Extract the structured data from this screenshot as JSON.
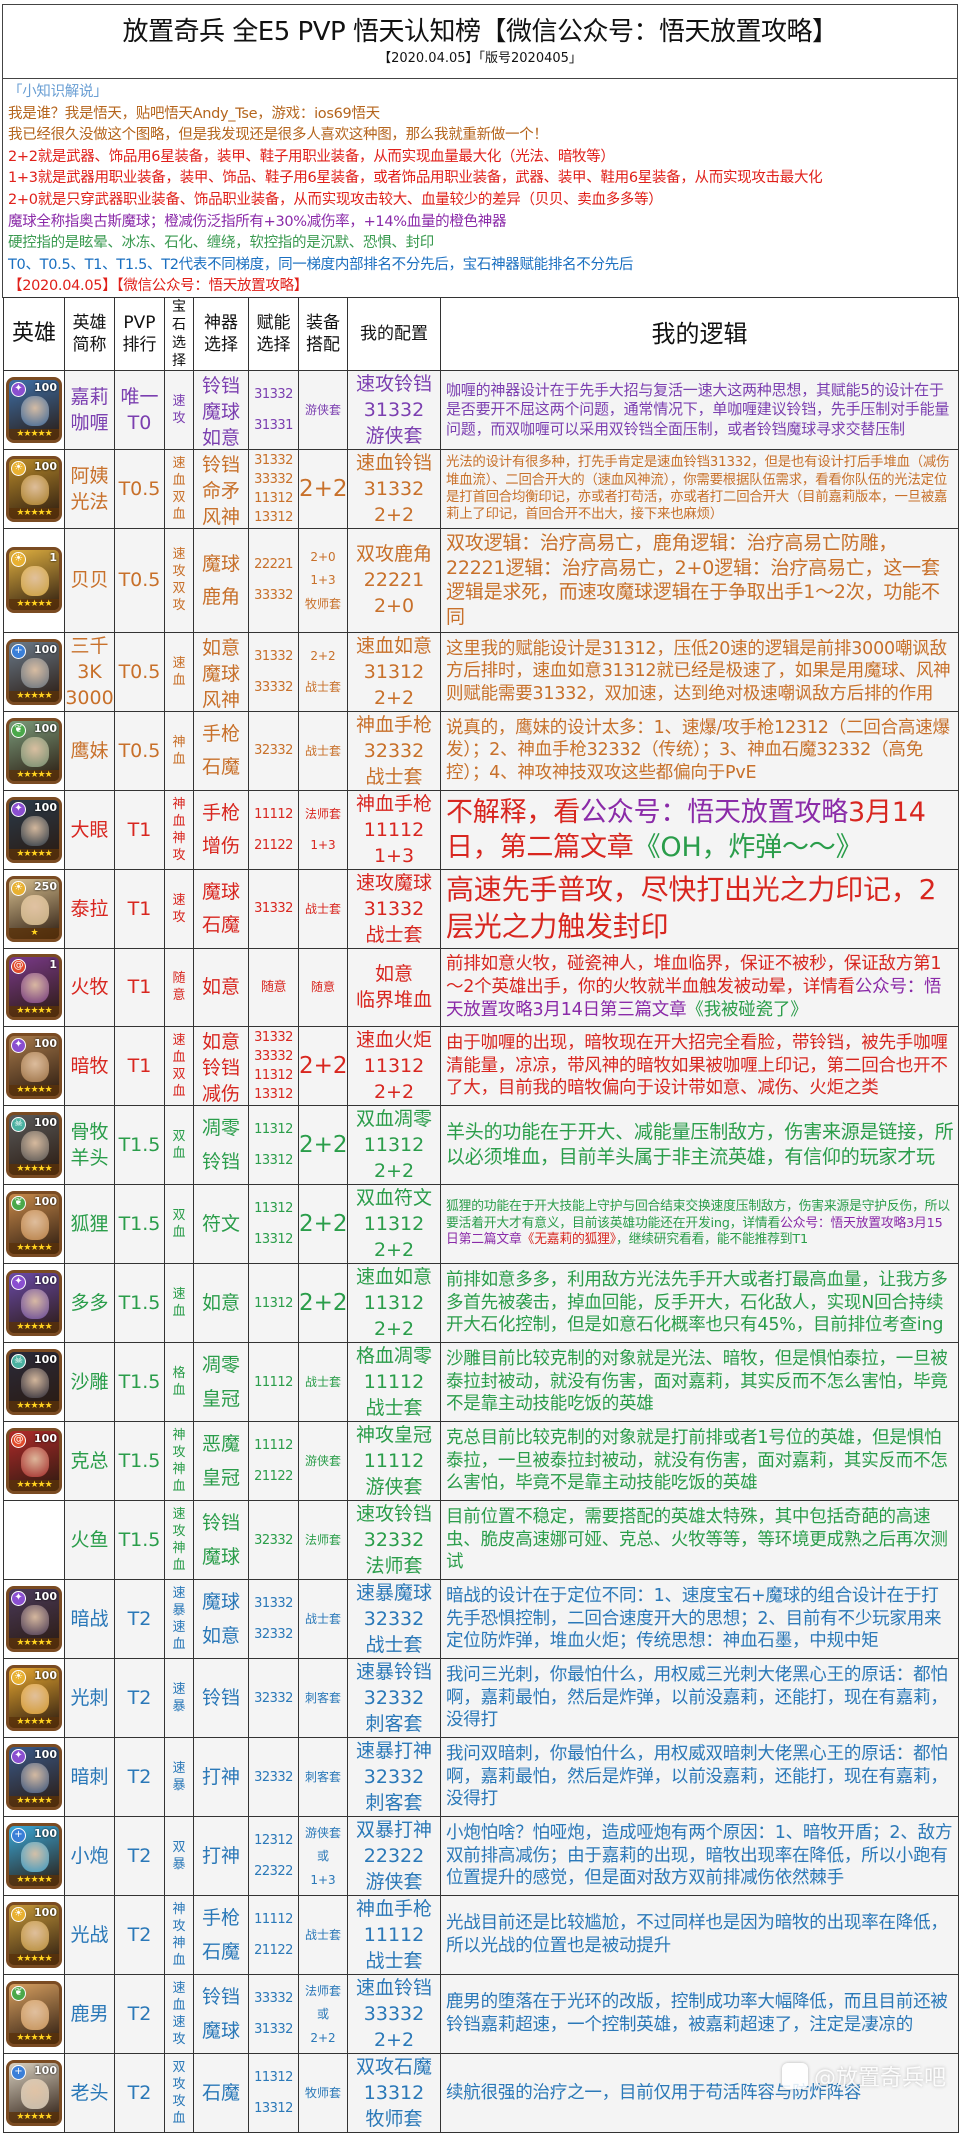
{
  "header": {
    "title": "放置奇兵 全E5 PVP 悟天认知榜【微信公众号：悟天放置攻略】",
    "subtitle": "【2020.04.05】「版号2020405」"
  },
  "notes": [
    {
      "text": "「小知识解说」",
      "color": "#6a9fd4"
    },
    {
      "text": "我是谁？我是悟天，贴吧悟天Andy_Tse，游戏：ios69悟天",
      "color": "#b5651d"
    },
    {
      "text": "我已经很久没做这个图略，但是我发现还是很多人喜欢这种图，那么我就重新做一个！",
      "color": "#b5651d"
    },
    {
      "text": "2+2就是武器、饰品用6星装备，装甲、鞋子用职业装备，从而实现血量最大化（光法、暗牧等）",
      "color": "#e0201a"
    },
    {
      "text": "1+3就是武器用职业装备，装甲、饰品、鞋子用6星装备，或者饰品用职业装备，武器、装甲、鞋用6星装备，从而实现攻击最大化",
      "color": "#e0201a"
    },
    {
      "text": "2+0就是只穿武器职业装备、饰品职业装备，从而实现攻击较大、血量较少的差异（贝贝、卖血多多等）",
      "color": "#e0201a"
    },
    {
      "text": "魔球全称指奥古斯魔球；橙减伤泛指所有+30%减伤率，+14%血量的橙色神器",
      "color": "#8a2aa8"
    },
    {
      "text": "硬控指的是眩晕、冰冻、石化、缠绕，软控指的是沉默、恐惧、封印",
      "color": "#3a9a50"
    },
    {
      "text": "T0、T0.5、T1、T1.5、T2代表不同梯度，同一梯度内部排名不分先后，宝石神器赋能排名不分先后",
      "color": "#1a6fc0"
    },
    {
      "text": "【2020.04.05】【微信公众号：悟天放置攻略】",
      "color": "#e0201a"
    }
  ],
  "columns": {
    "hero": "英雄",
    "short_name": "英雄简称",
    "pvp_rank": "PVP排行",
    "gem": "宝石选择",
    "artifact": "神器选择",
    "talent": "赋能选择",
    "equipment": "装备搭配",
    "my_config": "我的配置",
    "my_logic": "我的逻辑"
  },
  "colors": {
    "purple": "#7b3fb0",
    "orange": "#c8702a",
    "red": "#d8261f",
    "green": "#2a9d4a",
    "blue": "#2a78b8",
    "link_purple": "#8a2aa8",
    "link_green": "#2a9d4a",
    "link_red": "#d8261f"
  },
  "rows": [
    {
      "name": [
        "嘉莉",
        "咖喱"
      ],
      "rank": [
        "唯一",
        "T0"
      ],
      "gem": "速攻",
      "artifact": [
        "铃铛",
        "魔球",
        "如意"
      ],
      "talent": [
        "31332",
        "31331"
      ],
      "equipment": [
        "游侠套"
      ],
      "config": [
        "速攻铃铛",
        "31332",
        "游侠套"
      ],
      "color": "#7b3fb0",
      "portrait": {
        "level": "100",
        "faction": "dark",
        "faction_color": "#8a4fd0",
        "tone": "#3d6fa8",
        "stars": 5
      },
      "logic": [
        {
          "text": "咖喱的神器设计在于先手大招与复活一速大这两种思想，其赋能5的设计在于是否要开不屈这两个问题，通常情况下，单咖喱建议铃铛，先手压制对手能量问题，而双咖喱可以采用双铃铛全面压制，或者铃铛魔球寻求交替压制",
          "color": "#7b3fb0"
        }
      ]
    },
    {
      "name": [
        "阿姨",
        "光法"
      ],
      "rank": [
        "T0.5"
      ],
      "gem": "速血双血",
      "artifact": [
        "铃铛",
        "命矛",
        "风神"
      ],
      "talent": [
        "31332",
        "33332",
        "11312",
        "13312"
      ],
      "equipment": [
        "2+2"
      ],
      "config": [
        "速血铃铛",
        "31332",
        "2+2"
      ],
      "color": "#c8702a",
      "portrait": {
        "level": "100",
        "faction": "light",
        "faction_color": "#e8b030",
        "tone": "#b88a2a",
        "stars": 5
      },
      "logic": [
        {
          "text": "光法的设计有很多种，打先手肯定是速血铃铛31332，但是也有设计打后手堆血（减伤堆血流）、二回合开大的（速血风神流），你需要根据队伍需求，看看你队伍的光法定位是打首回合均衡印记，亦或者打苟活，亦或者打二回合开大（目前嘉莉版本，一旦被嘉莉上了印记，首回合开不出大，接下来也麻烦）",
          "color": "#c8702a"
        }
      ]
    },
    {
      "name": [
        "贝贝"
      ],
      "rank": [
        "T0.5"
      ],
      "gem": "速攻双攻",
      "artifact": [
        "魔球",
        "鹿角"
      ],
      "talent": [
        "22221",
        "33332"
      ],
      "equipment": [
        "2+0",
        "1+3",
        "牧师套"
      ],
      "config": [
        "双攻鹿角",
        "22221",
        "2+0"
      ],
      "color": "#c8702a",
      "portrait": {
        "level": "1",
        "faction": "light",
        "faction_color": "#e8b030",
        "tone": "#e0b040",
        "stars": 5
      },
      "logic": [
        {
          "text": "双攻逻辑：治疗高易亡，鹿角逻辑：治疗高易亡防雕，22221逻辑：治疗高易亡，2+0逻辑：治疗高易亡，这一套逻辑是求死，而速攻魔球逻辑在于争取出手1～2次，功能不同",
          "color": "#c8702a"
        }
      ]
    },
    {
      "name": [
        "三千",
        "3K",
        "3000"
      ],
      "rank": [
        "T0.5"
      ],
      "gem": "速血",
      "artifact": [
        "如意",
        "魔球",
        "风神"
      ],
      "talent": [
        "31332",
        "33332"
      ],
      "equipment": [
        "2+2",
        "战士套"
      ],
      "config": [
        "速血如意",
        "31312",
        "2+2"
      ],
      "color": "#c8702a",
      "portrait": {
        "level": "100",
        "faction": "order",
        "faction_color": "#3a7fd8",
        "tone": "#6a7a8a",
        "stars": 5
      },
      "logic": [
        {
          "text": "这里我的赋能设计是31312，压低20速的逻辑是前排3000嘲讽敌方后排时，速血如意31312就已经是极速了，如果是用魔球、风神则赋能需要31332，双加速，达到绝对极速嘲讽敌方后排的作用",
          "color": "#c8702a"
        }
      ]
    },
    {
      "name": [
        "鹰妹"
      ],
      "rank": [
        "T0.5"
      ],
      "gem": "神血",
      "artifact": [
        "手枪",
        "石魔"
      ],
      "talent": [
        "32332"
      ],
      "equipment": [
        "战士套"
      ],
      "config": [
        "神血手枪",
        "32332",
        "战士套"
      ],
      "color": "#c8702a",
      "portrait": {
        "level": "100",
        "faction": "nature",
        "faction_color": "#4aa84a",
        "tone": "#7a9a7a",
        "stars": 5
      },
      "logic": [
        {
          "text": "说真的，鹰妹的设计太多：1、速爆/攻手枪12312（二回合高速爆发）；2、神血手枪32332（传统）；3、神血石魔32332（高免控）；4、神攻神技双攻这些都偏向于PvE",
          "color": "#c8702a"
        }
      ]
    },
    {
      "name": [
        "大眼"
      ],
      "rank": [
        "T1"
      ],
      "gem": "神血神攻",
      "artifact": [
        "手枪",
        "增伤"
      ],
      "talent": [
        "11112",
        "21122"
      ],
      "equipment": [
        "法师套",
        "1+3"
      ],
      "config": [
        "神血手枪",
        "11112",
        "1+3"
      ],
      "color": "#d8261f",
      "portrait": {
        "level": "100",
        "faction": "dark",
        "faction_color": "#8a4fd0",
        "tone": "#2a3a4a",
        "stars": 5
      },
      "logic": [
        {
          "text": "不解释，看",
          "color": "#d8261f"
        },
        {
          "text": "公众号：悟天放置攻略",
          "color": "#8a2aa8"
        },
        {
          "text": "3月14日，第二篇文章",
          "color": "#d8261f"
        },
        {
          "text": "《OH，炸弹～～》",
          "color": "#2a9d4a"
        }
      ]
    },
    {
      "name": [
        "泰拉"
      ],
      "rank": [
        "T1"
      ],
      "gem": "速攻",
      "artifact": [
        "魔球",
        "石魔"
      ],
      "talent": [
        "31332"
      ],
      "equipment": [
        "战士套"
      ],
      "config": [
        "速攻魔球",
        "31332",
        "战士套"
      ],
      "color": "#d8261f",
      "portrait": {
        "level": "250",
        "faction": "light",
        "faction_color": "#e8b030",
        "tone": "#d8c090",
        "stars": 1
      },
      "logic": [
        {
          "text": "高速先手普攻，尽快打出光之力印记，2层光之力触发封印",
          "color": "#d8261f"
        }
      ]
    },
    {
      "name": [
        "火牧"
      ],
      "rank": [
        "T1"
      ],
      "gem": "随意",
      "artifact": [
        "如意"
      ],
      "talent": [
        "随意"
      ],
      "equipment": [
        "随意"
      ],
      "config": [
        "如意",
        "临界堆血"
      ],
      "color": "#d8261f",
      "portrait": {
        "level": "1",
        "faction": "chaos",
        "faction_color": "#e04a2a",
        "tone": "#7a3a8a",
        "stars": 5
      },
      "logic": [
        {
          "text": "前排如意火牧，碰瓷神人，堆血临界，保证不被秒，保证敌方第1～2个英雄出手，你的火牧就半血触发被动晕，详情看",
          "color": "#d8261f"
        },
        {
          "text": "公众号：悟天放置攻略3月14日第三篇文章",
          "color": "#8a2aa8"
        },
        {
          "text": "《我被碰瓷了》",
          "color": "#2a9d4a"
        }
      ]
    },
    {
      "name": [
        "暗牧"
      ],
      "rank": [
        "T1"
      ],
      "gem": "速血双血",
      "artifact": [
        "如意",
        "铃铛",
        "减伤"
      ],
      "talent": [
        "31332",
        "33332",
        "11312",
        "13312"
      ],
      "equipment": [
        "2+2"
      ],
      "config": [
        "速血火炬",
        "11312",
        "2+2"
      ],
      "color": "#d8261f",
      "portrait": {
        "level": "100",
        "faction": "dark",
        "faction_color": "#8a4fd0",
        "tone": "#a87a4a",
        "stars": 5
      },
      "logic": [
        {
          "text": "由于咖喱的出现，暗牧现在开大招完全看脸，带铃铛，被先手咖喱清能量，凉凉，带风神的暗牧如果被咖喱上印记，第二回合也开不了大，目前我的暗牧偏向于设计带如意、减伤、火炬之类",
          "color": "#d8261f"
        }
      ]
    },
    {
      "name": [
        "骨牧",
        "羊头"
      ],
      "rank": [
        "T1.5"
      ],
      "gem": "双血",
      "artifact": [
        "凋零",
        "铃铛"
      ],
      "talent": [
        "11312",
        "13312"
      ],
      "equipment": [
        "2+2"
      ],
      "config": [
        "双血凋零",
        "11312",
        "2+2"
      ],
      "color": "#2a9d4a",
      "portrait": {
        "level": "100",
        "faction": "undead",
        "faction_color": "#4ab0a0",
        "tone": "#5a5a5a",
        "stars": 5
      },
      "logic": [
        {
          "text": "羊头的功能在于开大、减能量压制敌方，伤害来源是链接，所以必须堆血，目前羊头属于非主流英雄，有信仰的玩家才玩",
          "color": "#2a9d4a"
        }
      ]
    },
    {
      "name": [
        "狐狸"
      ],
      "rank": [
        "T1.5"
      ],
      "gem": "双血",
      "artifact": [
        "符文"
      ],
      "talent": [
        "11312",
        "13312"
      ],
      "equipment": [
        "2+2"
      ],
      "config": [
        "双血符文",
        "11312",
        "2+2"
      ],
      "color": "#2a9d4a",
      "portrait": {
        "level": "100",
        "faction": "nature",
        "faction_color": "#4aa84a",
        "tone": "#c88a4a",
        "stars": 5
      },
      "logic": [
        {
          "text": "狐狸的功能在于开大技能上守护与回合结束交换速度压制敌方，伤害来源是守护反伤，所以要活着开大才有意义，目前该英雄功能还在开发ing，详情看",
          "color": "#2a9d4a"
        },
        {
          "text": "公众号：悟天放置攻略3月15日第二篇文章",
          "color": "#8a2aa8"
        },
        {
          "text": "《无嘉莉的狐狸》",
          "color": "#d8261f"
        },
        {
          "text": "，继续研究看看，能不能推荐到T1",
          "color": "#2a9d4a"
        }
      ]
    },
    {
      "name": [
        "多多"
      ],
      "rank": [
        "T1.5"
      ],
      "gem": "速血",
      "artifact": [
        "如意"
      ],
      "talent": [
        "11312"
      ],
      "equipment": [
        "2+2"
      ],
      "config": [
        "速血如意",
        "11312",
        "2+2"
      ],
      "color": "#2a9d4a",
      "portrait": {
        "level": "100",
        "faction": "dark",
        "faction_color": "#8a4fd0",
        "tone": "#6a4aa8",
        "stars": 5
      },
      "logic": [
        {
          "text": "前排如意多多，利用敌方光法先手开大或者打最高血量，让我方多多首先被袭击，掉血回能，反手开大，石化敌人，实现N回合持续开大石化控制，但是如意石化概率也只有45%，目前排位考查ing",
          "color": "#2a9d4a"
        }
      ]
    },
    {
      "name": [
        "沙雕"
      ],
      "rank": [
        "T1.5"
      ],
      "gem": "格血",
      "artifact": [
        "凋零",
        "皇冠"
      ],
      "talent": [
        "11112"
      ],
      "equipment": [
        "战士套"
      ],
      "config": [
        "格血凋零",
        "11112",
        "战士套"
      ],
      "color": "#2a9d4a",
      "portrait": {
        "level": "100",
        "faction": "undead",
        "faction_color": "#4ab0a0",
        "tone": "#2a2a3a",
        "stars": 5
      },
      "logic": [
        {
          "text": "沙雕目前比较克制的对象就是光法、暗牧，但是惧怕泰拉，一旦被泰拉封被动，就没有伤害，面对嘉莉，其实反而不怎么害怕，毕竟不是靠主动技能吃饭的英雄",
          "color": "#2a9d4a"
        }
      ]
    },
    {
      "name": [
        "克总"
      ],
      "rank": [
        "T1.5"
      ],
      "gem": "神攻神血",
      "artifact": [
        "恶魔",
        "皇冠"
      ],
      "talent": [
        "11112",
        "21122"
      ],
      "equipment": [
        "游侠套"
      ],
      "config": [
        "神攻皇冠",
        "11112",
        "游侠套"
      ],
      "color": "#2a9d4a",
      "portrait": {
        "level": "100",
        "faction": "chaos",
        "faction_color": "#e04a2a",
        "tone": "#b02a2a",
        "stars": 5
      },
      "logic": [
        {
          "text": "克总目前比较克制的对象就是打前排或者1号位的英雄，但是惧怕泰拉，一旦被泰拉封被动，就没有伤害，面对嘉莉，其实反而不怎么害怕，毕竟不是靠主动技能吃饭的英雄",
          "color": "#2a9d4a"
        }
      ]
    },
    {
      "name": [
        "火鱼"
      ],
      "rank": [
        "T1.5"
      ],
      "gem": "速攻神血",
      "artifact": [
        "铃铛",
        "魔球"
      ],
      "talent": [
        "32332"
      ],
      "equipment": [
        "法师套"
      ],
      "config": [
        "速攻铃铛",
        "32332",
        "法师套"
      ],
      "color": "#2a9d4a",
      "portrait": null,
      "logic": [
        {
          "text": "目前位置不稳定，需要搭配的英雄太特殊，其中包括奇葩的高速虫、脆皮高速娜可娅、克总、火牧等等，等环境更成熟之后再次测试",
          "color": "#2a9d4a"
        }
      ]
    },
    {
      "name": [
        "暗战"
      ],
      "rank": [
        "T2"
      ],
      "gem": "速暴速血",
      "artifact": [
        "魔球",
        "如意"
      ],
      "talent": [
        "31332",
        "32332"
      ],
      "equipment": [
        "战士套"
      ],
      "config": [
        "速暴魔球",
        "32332",
        "战士套"
      ],
      "color": "#2a78b8",
      "portrait": {
        "level": "100",
        "faction": "dark",
        "faction_color": "#8a4fd0",
        "tone": "#4a3a5a",
        "stars": 5
      },
      "logic": [
        {
          "text": "暗战的设计在于定位不同：1、速度宝石+魔球的组合设计在于打先手恐惧控制，二回合速度开大的思想；2、目前有不少玩家用来定位防炸弹，堆血火炬；传统思想：神血石墨，中规中矩",
          "color": "#2a78b8"
        }
      ]
    },
    {
      "name": [
        "光刺"
      ],
      "rank": [
        "T2"
      ],
      "gem": "速暴",
      "artifact": [
        "铃铛"
      ],
      "talent": [
        "32332"
      ],
      "equipment": [
        "刺客套"
      ],
      "config": [
        "速暴铃铛",
        "32332",
        "刺客套"
      ],
      "color": "#2a78b8",
      "portrait": {
        "level": "100",
        "faction": "light",
        "faction_color": "#e8b030",
        "tone": "#e8a830",
        "stars": 5
      },
      "logic": [
        {
          "text": "我问三光刺，你最怕什么，用权威三光刺大佬黑心王的原话：都怕啊，嘉莉最怕，然后是炸弹，以前没嘉莉，还能打，现在有嘉莉，没得打",
          "color": "#2a78b8"
        }
      ]
    },
    {
      "name": [
        "暗刺"
      ],
      "rank": [
        "T2"
      ],
      "gem": "速暴",
      "artifact": [
        "打神"
      ],
      "talent": [
        "32332"
      ],
      "equipment": [
        "刺客套"
      ],
      "config": [
        "速暴打神",
        "32332",
        "刺客套"
      ],
      "color": "#2a78b8",
      "portrait": {
        "level": "100",
        "faction": "dark",
        "faction_color": "#8a4fd0",
        "tone": "#3a5a8a",
        "stars": 5
      },
      "logic": [
        {
          "text": "我问双暗刺，你最怕什么，用权威双暗刺大佬黑心王的原话：都怕啊，嘉莉最怕，然后是炸弹，以前没嘉莉，还能打，现在有嘉莉，没得打",
          "color": "#2a78b8"
        }
      ]
    },
    {
      "name": [
        "小炮"
      ],
      "rank": [
        "T2"
      ],
      "gem": "双暴",
      "artifact": [
        "打神"
      ],
      "talent": [
        "12312",
        "22322"
      ],
      "equipment": [
        "游侠套",
        "或",
        "1+3"
      ],
      "config": [
        "双暴打神",
        "22322",
        "游侠套"
      ],
      "color": "#2a78b8",
      "portrait": {
        "level": "100",
        "faction": "order",
        "faction_color": "#3a7fd8",
        "tone": "#3aa8d8",
        "stars": 5
      },
      "logic": [
        {
          "text": "小炮怕啥？怕哑炮，造成哑炮有两个原因：1、暗牧开盾；2、敌方双前排高减伤；由于嘉莉的出现，暗牧出现率在降低，所以小跑有位置提升的感觉，但是面对敌方双前排减伤依然棘手",
          "color": "#2a78b8"
        }
      ]
    },
    {
      "name": [
        "光战"
      ],
      "rank": [
        "T2"
      ],
      "gem": "神攻神血",
      "artifact": [
        "手枪",
        "石魔"
      ],
      "talent": [
        "11112",
        "21122"
      ],
      "equipment": [
        "战士套"
      ],
      "config": [
        "神血手枪",
        "11112",
        "战士套"
      ],
      "color": "#2a78b8",
      "portrait": {
        "level": "100",
        "faction": "light",
        "faction_color": "#e8b030",
        "tone": "#c89a3a",
        "stars": 5
      },
      "logic": [
        {
          "text": "光战目前还是比较尴尬，不过同样也是因为暗牧的出现率在降低，所以光战的位置也是被动提升",
          "color": "#2a78b8"
        }
      ]
    },
    {
      "name": [
        "鹿男"
      ],
      "rank": [
        "T2"
      ],
      "gem": "速血速攻",
      "artifact": [
        "铃铛",
        "魔球"
      ],
      "talent": [
        "33332",
        "31332"
      ],
      "equipment": [
        "法师套",
        "或",
        "2+2"
      ],
      "config": [
        "速血铃铛",
        "33332",
        "2+2"
      ],
      "color": "#2a78b8",
      "portrait": {
        "level": "",
        "faction": "nature",
        "faction_color": "#4aa84a",
        "tone": "#d8a060",
        "stars": 5
      },
      "logic": [
        {
          "text": "鹿男的堕落在于光环的改版，控制成功率大幅降低，而且目前还被铃铛嘉莉超速，一个控制英雄，被嘉莉超速了，注定是凄凉的",
          "color": "#2a78b8"
        }
      ]
    },
    {
      "name": [
        "老头"
      ],
      "rank": [
        "T2"
      ],
      "gem": "双攻攻血",
      "artifact": [
        "石魔"
      ],
      "talent": [
        "11312",
        "13312"
      ],
      "equipment": [
        "牧师套"
      ],
      "config": [
        "双攻石魔",
        "13312",
        "牧师套"
      ],
      "color": "#2a78b8",
      "portrait": {
        "level": "100",
        "faction": "order",
        "faction_color": "#3a7fd8",
        "tone": "#d8d0c0",
        "stars": 5
      },
      "logic": [
        {
          "text": "续航很强的治疗之一，目前仅用于苟活阵容与防炸阵容",
          "color": "#2a78b8"
        }
      ]
    }
  ],
  "watermark": "@放置奇兵吧"
}
